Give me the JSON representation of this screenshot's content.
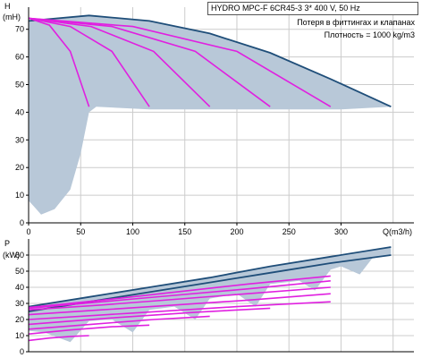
{
  "info": {
    "title": "HYDRO MPC-F 6CR45-3    3* 400 V, 50 Hz",
    "note_line1": "Потеря в фиттингах и клапанах",
    "note_line2": "Плотность = 1000 kg/m3"
  },
  "colors": {
    "area": "#b8c8d8",
    "system_curve": "#1f4e79",
    "pump_curve": "#e020e0",
    "grid": "#cccccc",
    "axis": "#000000"
  },
  "chart_data": [
    {
      "type": "line",
      "title": "",
      "xlabel": "Q(m3/h)",
      "ylabel": "H (mH)",
      "xlim": [
        0,
        370
      ],
      "ylim": [
        0,
        78
      ],
      "xticks": [
        0,
        50,
        100,
        150,
        200,
        250,
        300
      ],
      "yticks": [
        0,
        10,
        20,
        30,
        40,
        50,
        60,
        70
      ],
      "grid": true,
      "area": {
        "upper": [
          [
            0,
            73
          ],
          [
            58,
            75
          ],
          [
            116,
            73
          ],
          [
            174,
            68.5
          ],
          [
            232,
            61.5
          ],
          [
            290,
            52
          ],
          [
            348,
            42
          ]
        ],
        "lower": [
          [
            348,
            42
          ],
          [
            300,
            41
          ],
          [
            290,
            41
          ],
          [
            240,
            41
          ],
          [
            232,
            41
          ],
          [
            180,
            41
          ],
          [
            174,
            41
          ],
          [
            120,
            41
          ],
          [
            116,
            41
          ],
          [
            65,
            42
          ],
          [
            58,
            40
          ],
          [
            50,
            25
          ],
          [
            40,
            12
          ],
          [
            25,
            5
          ],
          [
            12,
            3
          ],
          [
            5,
            6
          ],
          [
            0,
            8
          ]
        ]
      },
      "series": [
        {
          "name": "",
          "role": "envelope",
          "points": [
            [
              0,
              73
            ],
            [
              58,
              75
            ],
            [
              116,
              73
            ],
            [
              174,
              68.5
            ],
            [
              232,
              61.5
            ],
            [
              290,
              52
            ],
            [
              348,
              42
            ]
          ]
        },
        {
          "name": "",
          "role": "pump",
          "points": [
            [
              0,
              74
            ],
            [
              20,
              71.5
            ],
            [
              40,
              62
            ],
            [
              58,
              42
            ]
          ]
        },
        {
          "name": "",
          "role": "pump",
          "points": [
            [
              0,
              74
            ],
            [
              40,
              71
            ],
            [
              80,
              62
            ],
            [
              116,
              42
            ]
          ]
        },
        {
          "name": "",
          "role": "pump",
          "points": [
            [
              0,
              74
            ],
            [
              60,
              71
            ],
            [
              120,
              62
            ],
            [
              174,
              42
            ]
          ]
        },
        {
          "name": "",
          "role": "pump",
          "points": [
            [
              0,
              74
            ],
            [
              80,
              71
            ],
            [
              160,
              62
            ],
            [
              232,
              42
            ]
          ]
        },
        {
          "name": "",
          "role": "pump",
          "points": [
            [
              0,
              74
            ],
            [
              100,
              71
            ],
            [
              200,
              62
            ],
            [
              290,
              42
            ]
          ]
        }
      ]
    },
    {
      "type": "line",
      "title": "",
      "xlabel": "",
      "ylabel": "P (kW)",
      "xlim": [
        0,
        370
      ],
      "ylim": [
        0,
        70
      ],
      "xticks": [],
      "yticks": [
        0,
        10,
        20,
        30,
        40,
        50,
        60
      ],
      "grid": true,
      "area": {
        "upper": [
          [
            0,
            28
          ],
          [
            58,
            34
          ],
          [
            116,
            40
          ],
          [
            174,
            46
          ],
          [
            232,
            53
          ],
          [
            290,
            59
          ],
          [
            348,
            65
          ]
        ],
        "lower": [
          [
            348,
            60
          ],
          [
            330,
            58
          ],
          [
            318,
            48
          ],
          [
            300,
            53
          ],
          [
            290,
            51
          ],
          [
            275,
            38
          ],
          [
            260,
            44
          ],
          [
            232,
            42
          ],
          [
            218,
            28
          ],
          [
            200,
            36
          ],
          [
            174,
            33
          ],
          [
            160,
            20
          ],
          [
            140,
            28
          ],
          [
            116,
            26
          ],
          [
            100,
            12
          ],
          [
            80,
            20
          ],
          [
            58,
            19
          ],
          [
            40,
            6
          ],
          [
            15,
            12
          ],
          [
            0,
            13
          ]
        ]
      },
      "series": [
        {
          "name": "",
          "role": "envelope",
          "points": [
            [
              0,
              28
            ],
            [
              58,
              34
            ],
            [
              116,
              40
            ],
            [
              174,
              46
            ],
            [
              232,
              53
            ],
            [
              290,
              59
            ],
            [
              348,
              65
            ]
          ]
        },
        {
          "name": "",
          "role": "envelope",
          "points": [
            [
              0,
              25
            ],
            [
              58,
              31
            ],
            [
              116,
              37
            ],
            [
              174,
              43
            ],
            [
              232,
              49
            ],
            [
              290,
              55
            ],
            [
              348,
              60
            ]
          ]
        },
        {
          "name": "",
          "role": "pump",
          "points": [
            [
              0,
              7
            ],
            [
              20,
              8.5
            ],
            [
              40,
              9.5
            ],
            [
              58,
              10
            ]
          ]
        },
        {
          "name": "",
          "role": "pump",
          "points": [
            [
              0,
              11
            ],
            [
              40,
              13.5
            ],
            [
              80,
              15.5
            ],
            [
              116,
              16.5
            ]
          ]
        },
        {
          "name": "",
          "role": "pump",
          "points": [
            [
              0,
              14
            ],
            [
              60,
              17
            ],
            [
              120,
              20
            ],
            [
              174,
              22
            ]
          ]
        },
        {
          "name": "",
          "role": "pump",
          "points": [
            [
              0,
              17
            ],
            [
              80,
              21
            ],
            [
              160,
              24.5
            ],
            [
              232,
              27
            ]
          ]
        },
        {
          "name": "",
          "role": "pump",
          "points": [
            [
              0,
              20
            ],
            [
              100,
              24
            ],
            [
              200,
              28
            ],
            [
              290,
              31
            ]
          ]
        },
        {
          "name": "",
          "role": "pump",
          "points": [
            [
              0,
              23
            ],
            [
              70,
              26
            ],
            [
              140,
              29
            ],
            [
              210,
              32
            ],
            [
              290,
              36
            ]
          ]
        },
        {
          "name": "",
          "role": "pump",
          "points": [
            [
              0,
              26
            ],
            [
              70,
              29
            ],
            [
              140,
              32.5
            ],
            [
              210,
              36
            ],
            [
              290,
              40
            ]
          ]
        },
        {
          "name": "",
          "role": "pump",
          "points": [
            [
              0,
              27
            ],
            [
              70,
              31
            ],
            [
              140,
              35
            ],
            [
              210,
              39
            ],
            [
              290,
              44
            ]
          ]
        },
        {
          "name": "",
          "role": "pump",
          "points": [
            [
              0,
              27.5
            ],
            [
              70,
              32
            ],
            [
              140,
              37
            ],
            [
              210,
              42
            ],
            [
              290,
              47
            ]
          ]
        }
      ]
    }
  ]
}
